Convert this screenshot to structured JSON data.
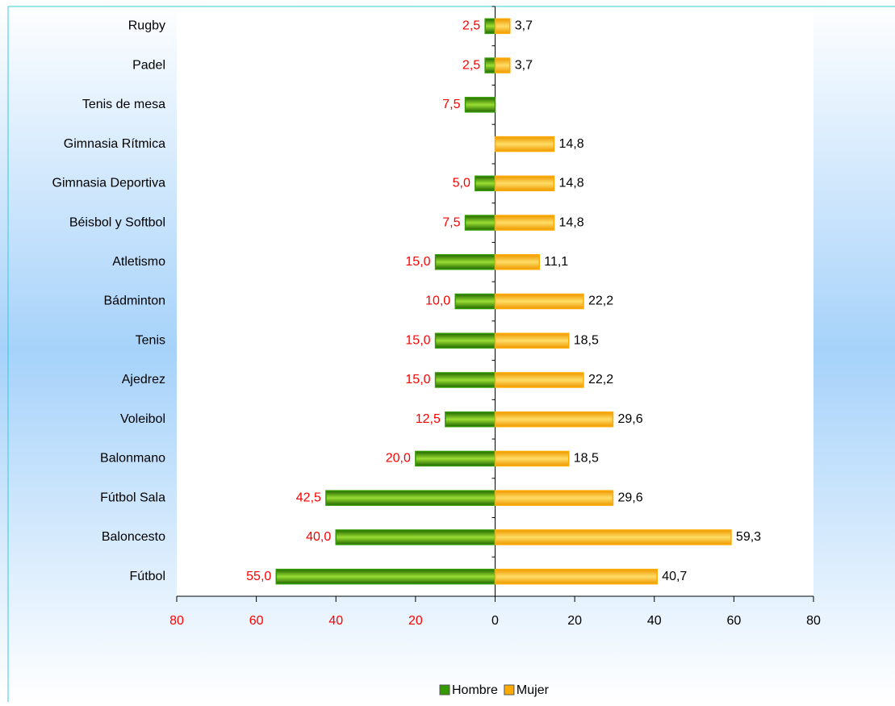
{
  "chart_data": {
    "type": "butterfly-bar",
    "categories": [
      "Rugby",
      "Padel",
      "Tenis de mesa",
      "Gimnasia Rítmica",
      "Gimnasia Deportiva",
      "Béisbol y Softbol",
      "Atletismo",
      "Bádminton",
      "Tenis",
      "Ajedrez",
      "Voleibol",
      "Balonmano",
      "Fútbol Sala",
      "Baloncesto",
      "Fútbol"
    ],
    "series": [
      {
        "name": "Hombre",
        "color": "#339900",
        "label_color": "#ff0000",
        "values": [
          -2.5,
          -2.5,
          -7.5,
          null,
          -5.0,
          -7.5,
          -15.0,
          -10.0,
          -15.0,
          -15.0,
          -12.5,
          -20.0,
          -42.5,
          -40.0,
          -55.0
        ],
        "value_labels": [
          "2,5",
          "2,5",
          "7,5",
          null,
          "5,0",
          "7,5",
          "15,0",
          "10,0",
          "15,0",
          "15,0",
          "12,5",
          "20,0",
          "42,5",
          "40,0",
          "55,0"
        ]
      },
      {
        "name": "Mujer",
        "color": "#ffaa00",
        "label_color": "#000000",
        "values": [
          3.7,
          3.7,
          null,
          14.8,
          14.8,
          14.8,
          11.1,
          22.2,
          18.5,
          22.2,
          29.6,
          18.5,
          29.6,
          59.3,
          40.7
        ],
        "value_labels": [
          "3,7",
          "3,7",
          null,
          "14,8",
          "14,8",
          "14,8",
          "11,1",
          "22,2",
          "18,5",
          "22,2",
          "29,6",
          "18,5",
          "29,6",
          "59,3",
          "40,7"
        ]
      }
    ],
    "xlim": [
      -80,
      80
    ],
    "xticks": [
      {
        "value": -80,
        "label": "80"
      },
      {
        "value": -60,
        "label": "60"
      },
      {
        "value": -40,
        "label": "40"
      },
      {
        "value": -20,
        "label": "20"
      },
      0,
      20,
      40,
      60,
      80
    ],
    "negative_tick_color": "#ff0000",
    "legend": "bottom"
  }
}
